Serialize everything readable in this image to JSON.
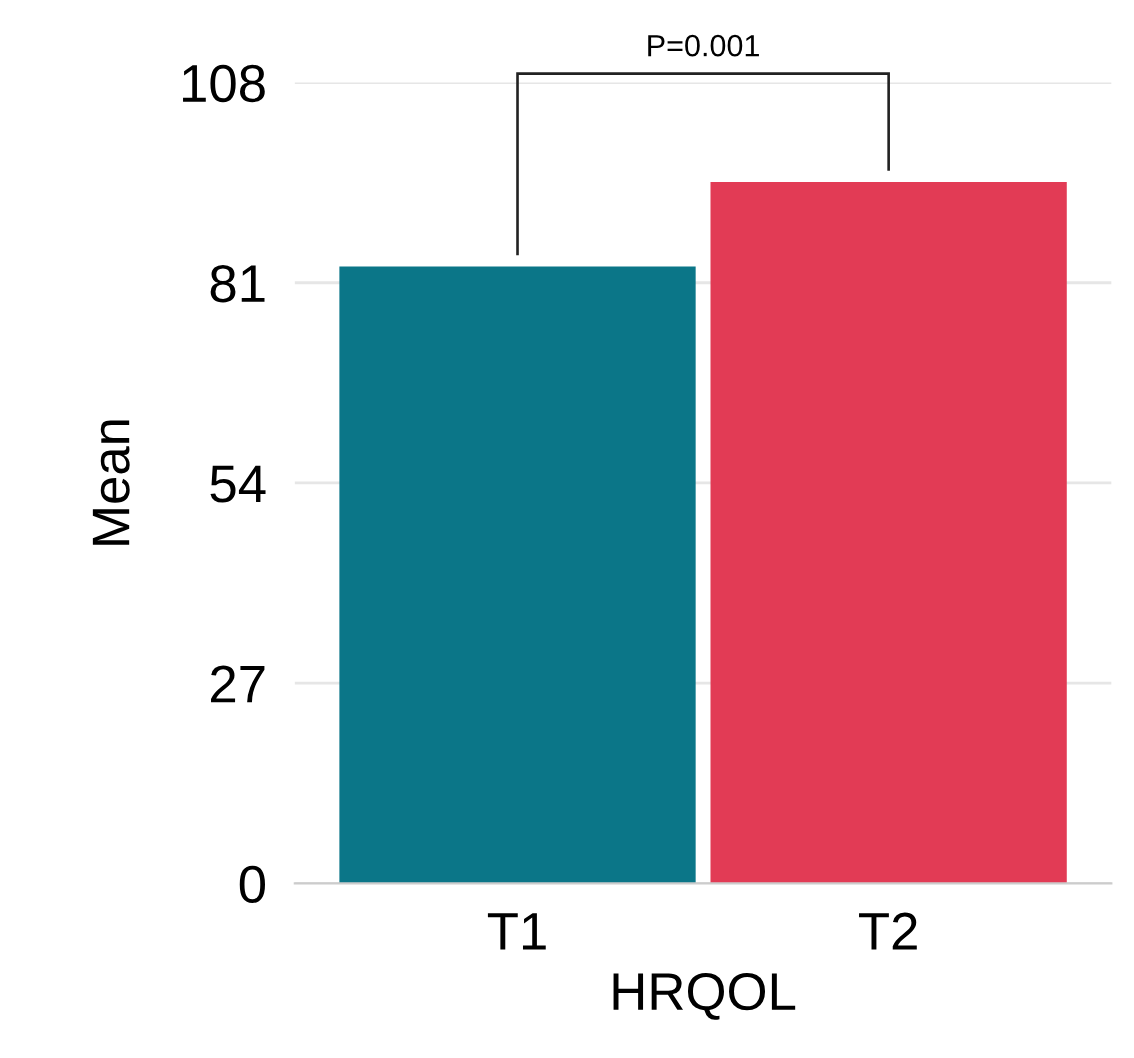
{
  "chart_data": {
    "type": "bar",
    "xlabel": "HRQOL",
    "ylabel": "Mean",
    "categories": [
      "T1",
      "T2"
    ],
    "values": [
      83.2,
      94.6
    ],
    "colors": [
      "#0b7688",
      "#e23b55"
    ],
    "ylim": [
      0,
      108
    ],
    "yticks": [
      0,
      27,
      54,
      81,
      108
    ],
    "grid": "y",
    "annotations": [
      "P=0.001"
    ]
  }
}
